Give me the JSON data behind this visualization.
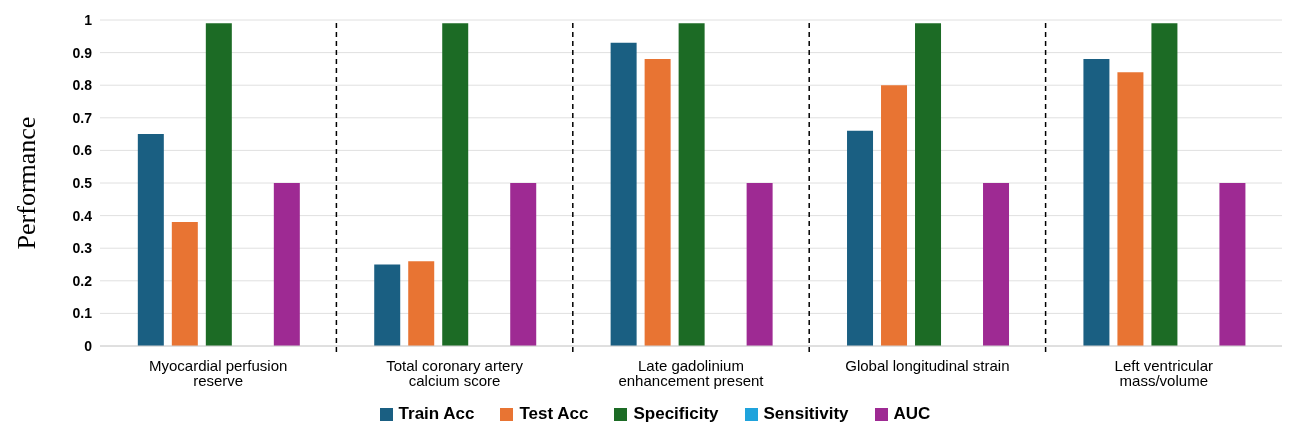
{
  "chart_data": {
    "type": "bar",
    "ylabel": "Performance",
    "categories": [
      "Myocardial perfusion reserve",
      "Total coronary artery calcium score",
      "Late gadolinium enhancement present",
      "Global longitudinal strain",
      "Left ventricular mass/volume"
    ],
    "series": [
      {
        "name": "Train Acc",
        "color": "#1a5f82",
        "values": [
          0.65,
          0.25,
          0.93,
          0.66,
          0.88
        ]
      },
      {
        "name": "Test Acc",
        "color": "#e87433",
        "values": [
          0.38,
          0.26,
          0.88,
          0.8,
          0.84
        ]
      },
      {
        "name": "Specificity",
        "color": "#1c6b25",
        "values": [
          0.99,
          0.99,
          0.99,
          0.99,
          0.99
        ]
      },
      {
        "name": "Sensitivity",
        "color": "#1fa3dc",
        "values": [
          0,
          0,
          0,
          0,
          0
        ]
      },
      {
        "name": "AUC",
        "color": "#9e2a93",
        "values": [
          0.5,
          0.5,
          0.5,
          0.5,
          0.5
        ]
      }
    ],
    "ylim": [
      0,
      1
    ],
    "yticks": [
      0,
      0.1,
      0.2,
      0.3,
      0.4,
      0.5,
      0.6,
      0.7,
      0.8,
      0.9,
      1
    ],
    "grid": "y",
    "legend": "bottom"
  }
}
